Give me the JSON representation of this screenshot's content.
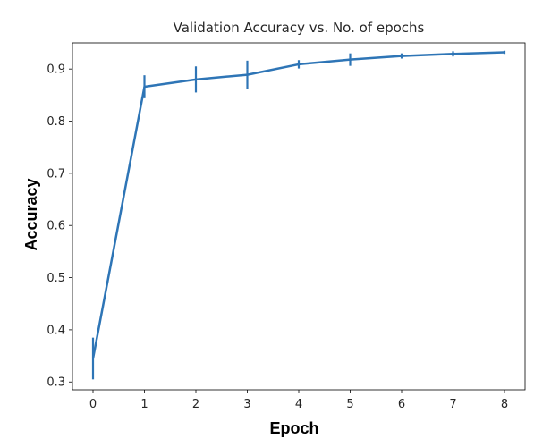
{
  "chart_data": {
    "type": "line",
    "title": "Validation Accuracy vs. No. of epochs",
    "xlabel": "Epoch",
    "ylabel": "Accuracy",
    "x": [
      0,
      1,
      2,
      3,
      4,
      5,
      6,
      7,
      8
    ],
    "xticks": [
      "0",
      "1",
      "2",
      "3",
      "4",
      "5",
      "6",
      "7",
      "8"
    ],
    "yticks": [
      "0.3",
      "0.4",
      "0.5",
      "0.6",
      "0.7",
      "0.8",
      "0.9"
    ],
    "xlim": [
      -0.4,
      8.4
    ],
    "ylim": [
      0.285,
      0.95
    ],
    "series": [
      {
        "values": [
          0.345,
          0.866,
          0.88,
          0.889,
          0.909,
          0.918,
          0.925,
          0.929,
          0.932
        ],
        "errors": [
          0.04,
          0.022,
          0.025,
          0.027,
          0.008,
          0.012,
          0.005,
          0.005,
          0.003
        ],
        "color": "#2e75b6"
      }
    ],
    "grid": false,
    "legend": "none"
  }
}
